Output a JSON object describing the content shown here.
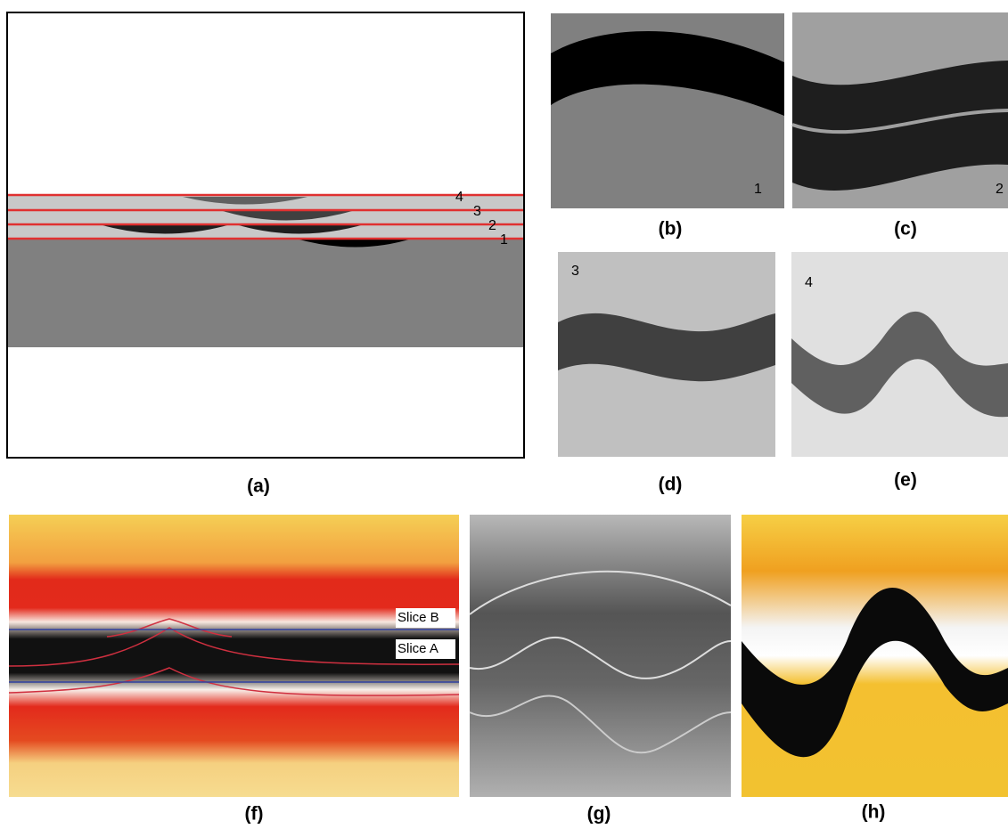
{
  "panels": [
    {
      "label": "(a)",
      "layer_labels": [
        "4",
        "3",
        "2",
        "1"
      ]
    },
    {
      "label": "(b)",
      "layer_label": "1"
    },
    {
      "label": "(c)",
      "layer_label": "2"
    },
    {
      "label": "(d)",
      "layer_label": "3"
    },
    {
      "label": "(e)",
      "layer_label": "4"
    },
    {
      "label": "(f)",
      "slice_labels": [
        "Slice B",
        "Slice A"
      ]
    },
    {
      "label": "(g)"
    },
    {
      "label": "(h)"
    }
  ]
}
